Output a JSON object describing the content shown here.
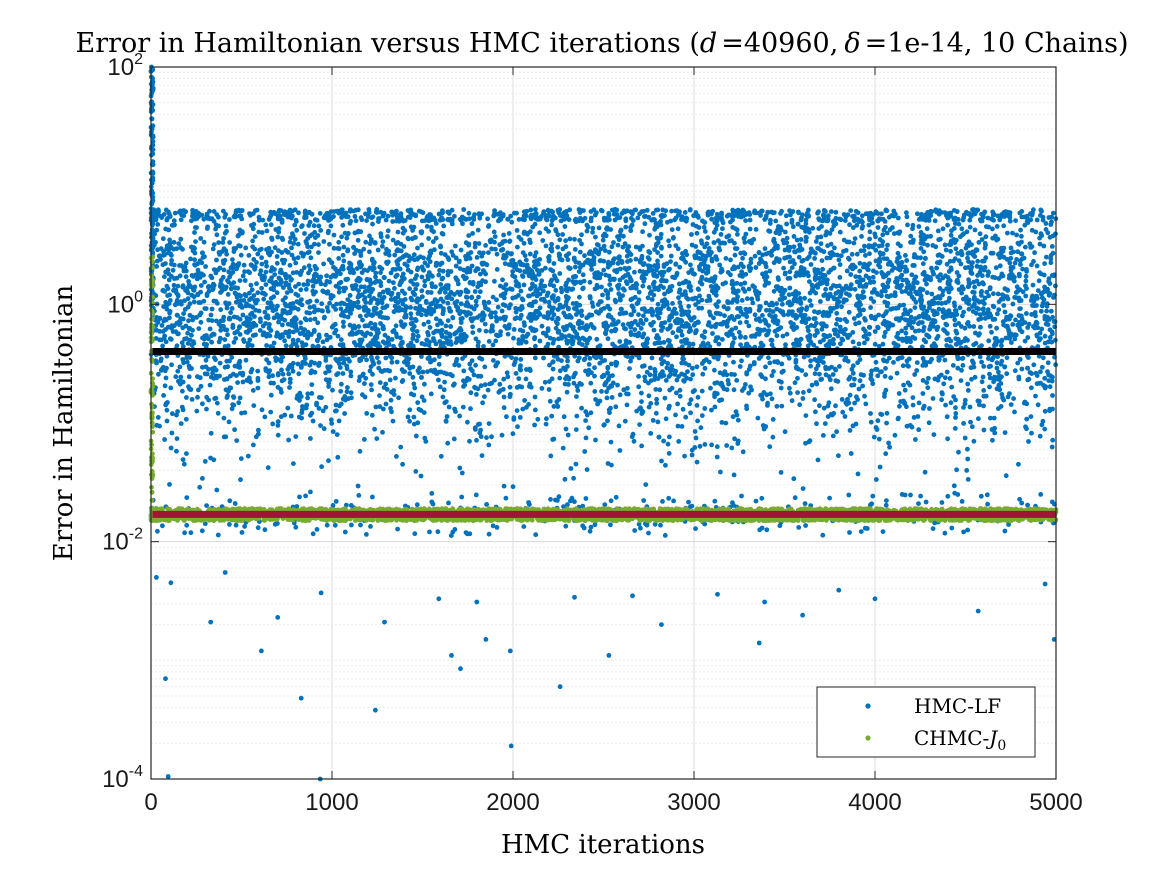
{
  "chart_data": {
    "type": "scatter",
    "title_main": "Error in Hamiltonian versus HMC iterations (",
    "title_d_symbol": "d",
    "title_d_value": "=40960,",
    "title_delta_symbol": "δ",
    "title_delta_value": "=1e-14, 10 Chains)",
    "xlabel": "HMC iterations",
    "ylabel": "Error in Hamiltonian",
    "x_scale": "linear",
    "y_scale": "log",
    "xlim": [
      0,
      5000
    ],
    "ylim": [
      0.0001,
      100
    ],
    "x_ticks": [
      0,
      1000,
      2000,
      3000,
      4000,
      5000
    ],
    "x_tick_labels": [
      "0",
      "1000",
      "2000",
      "3000",
      "4000",
      "5000"
    ],
    "y_ticks": [
      0.0001,
      0.01,
      1,
      100
    ],
    "y_tick_labels": [
      {
        "base": "10",
        "exp": "-4"
      },
      {
        "base": "10",
        "exp": "-2"
      },
      {
        "base": "10",
        "exp": "0"
      },
      {
        "base": "10",
        "exp": "2"
      }
    ],
    "grid": true,
    "legend_position": "bottom-right",
    "series": [
      {
        "name": "HMC-LF",
        "legend_label": "HMC-LF",
        "color": "#0072bd",
        "marker": "dot",
        "median_log10": 0.0,
        "spread_log10": 0.55,
        "min_value": 0.0001,
        "max_value": 100,
        "mean_line": 0.4,
        "mean_line_color": "#000000"
      },
      {
        "name": "CHMC-J0",
        "legend_label_main": "CHMC-",
        "legend_label_symbol": "J",
        "legend_label_sub": "0",
        "color": "#77ac30",
        "marker": "dot",
        "band_low": 0.015,
        "band_high": 0.019,
        "mean_line": 0.017,
        "mean_line_color": "#a2142f"
      }
    ],
    "sample_points": {
      "description_count": 50000,
      "outliers_low": [
        {
          "x": 30,
          "y": 0.005
        },
        {
          "x": 80,
          "y": 0.0007
        },
        {
          "x": 95,
          "y": 0.000105
        },
        {
          "x": 110,
          "y": 0.0045
        },
        {
          "x": 330,
          "y": 0.0021
        },
        {
          "x": 410,
          "y": 0.0055
        },
        {
          "x": 610,
          "y": 0.0012
        },
        {
          "x": 700,
          "y": 0.0023
        },
        {
          "x": 830,
          "y": 0.00048
        },
        {
          "x": 935,
          "y": 0.0001
        },
        {
          "x": 940,
          "y": 0.0037
        },
        {
          "x": 1240,
          "y": 0.00038
        },
        {
          "x": 1290,
          "y": 0.0021
        },
        {
          "x": 1590,
          "y": 0.0033
        },
        {
          "x": 1660,
          "y": 0.0011
        },
        {
          "x": 1710,
          "y": 0.00085
        },
        {
          "x": 1800,
          "y": 0.0031
        },
        {
          "x": 1850,
          "y": 0.0015
        },
        {
          "x": 1990,
          "y": 0.00019
        },
        {
          "x": 1985,
          "y": 0.0012
        },
        {
          "x": 2260,
          "y": 0.0006
        },
        {
          "x": 2340,
          "y": 0.0034
        },
        {
          "x": 2530,
          "y": 0.0011
        },
        {
          "x": 2660,
          "y": 0.0035
        },
        {
          "x": 2820,
          "y": 0.002
        },
        {
          "x": 3130,
          "y": 0.0036
        },
        {
          "x": 3360,
          "y": 0.0014
        },
        {
          "x": 3390,
          "y": 0.0031
        },
        {
          "x": 3600,
          "y": 0.0024
        },
        {
          "x": 3800,
          "y": 0.0039
        },
        {
          "x": 4000,
          "y": 0.0033
        },
        {
          "x": 4570,
          "y": 0.0026
        },
        {
          "x": 4940,
          "y": 0.0044
        },
        {
          "x": 4990,
          "y": 0.0015
        }
      ],
      "burn_in_high": [
        {
          "x": 2,
          "y": 100
        },
        {
          "x": 4,
          "y": 60
        },
        {
          "x": 6,
          "y": 30
        },
        {
          "x": 8,
          "y": 15
        },
        {
          "x": 10,
          "y": 8
        },
        {
          "x": 12,
          "y": 4
        }
      ]
    }
  }
}
